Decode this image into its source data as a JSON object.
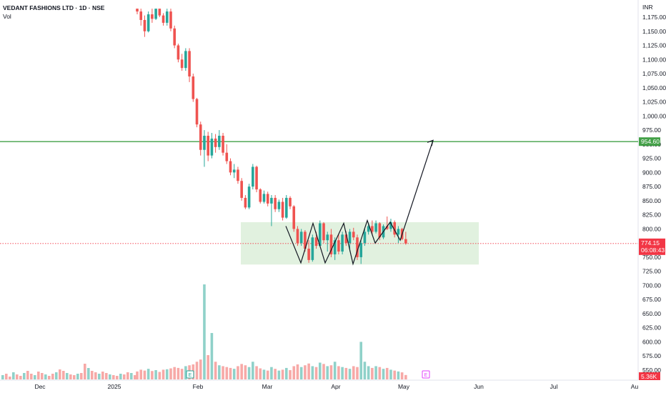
{
  "header": {
    "title": "VEDANT FASHIONS LTD · 1D · NSE",
    "volume_label": "Vol"
  },
  "currency": "INR",
  "colors": {
    "up": "#26a69a",
    "down": "#ef5350",
    "up_vol": "#8fd1c9",
    "down_vol": "#f7a9a7",
    "resistance": "#43a047",
    "box": "#d7ecd4",
    "current": "#f23645"
  },
  "chart_data": {
    "type": "candlestick",
    "title": "VEDANT FASHIONS LTD · 1D · NSE",
    "ylim": [
      535,
      1190
    ],
    "yticks": [
      550,
      575,
      600,
      625,
      650,
      675,
      700,
      725,
      750,
      775,
      800,
      825,
      850,
      875,
      900,
      925,
      950,
      975,
      1000,
      1025,
      1050,
      1075,
      1100,
      1125,
      1150,
      1175
    ],
    "ytick_labels": [
      "550.00",
      "575.00",
      "600.00",
      "625.00",
      "650.00",
      "675.00",
      "700.00",
      "725.00",
      "750.00",
      "775.00",
      "800.00",
      "825.00",
      "850.00",
      "875.00",
      "900.00",
      "925.00",
      "950.00",
      "975.00",
      "1,000.00",
      "1,025.00",
      "1,050.00",
      "1,075.00",
      "1,100.00",
      "1,125.00",
      "1,150.00",
      "1,175.00"
    ],
    "xticks": [
      "Dec",
      "2025",
      "Feb",
      "Mar",
      "Apr",
      "May",
      "Jun",
      "Jul",
      "Au"
    ],
    "candles": [
      {
        "o": 1200,
        "h": 1206,
        "l": 1180,
        "c": 1185,
        "v": 18
      },
      {
        "o": 1185,
        "h": 1195,
        "l": 1160,
        "c": 1170,
        "v": 22
      },
      {
        "o": 1170,
        "h": 1178,
        "l": 1140,
        "c": 1150,
        "v": 20
      },
      {
        "o": 1150,
        "h": 1185,
        "l": 1148,
        "c": 1180,
        "v": 24
      },
      {
        "o": 1180,
        "h": 1190,
        "l": 1165,
        "c": 1172,
        "v": 19
      },
      {
        "o": 1172,
        "h": 1195,
        "l": 1170,
        "c": 1190,
        "v": 21
      },
      {
        "o": 1190,
        "h": 1198,
        "l": 1175,
        "c": 1178,
        "v": 17
      },
      {
        "o": 1178,
        "h": 1182,
        "l": 1160,
        "c": 1165,
        "v": 22
      },
      {
        "o": 1165,
        "h": 1190,
        "l": 1160,
        "c": 1185,
        "v": 23
      },
      {
        "o": 1185,
        "h": 1192,
        "l": 1150,
        "c": 1155,
        "v": 25
      },
      {
        "o": 1155,
        "h": 1160,
        "l": 1120,
        "c": 1125,
        "v": 28
      },
      {
        "o": 1125,
        "h": 1128,
        "l": 1095,
        "c": 1100,
        "v": 26
      },
      {
        "o": 1100,
        "h": 1110,
        "l": 1080,
        "c": 1085,
        "v": 24
      },
      {
        "o": 1085,
        "h": 1120,
        "l": 1080,
        "c": 1115,
        "v": 30
      },
      {
        "o": 1115,
        "h": 1120,
        "l": 1060,
        "c": 1070,
        "v": 32
      },
      {
        "o": 1070,
        "h": 1075,
        "l": 1025,
        "c": 1030,
        "v": 34
      },
      {
        "o": 1030,
        "h": 1032,
        "l": 980,
        "c": 985,
        "v": 40
      },
      {
        "o": 985,
        "h": 990,
        "l": 930,
        "c": 940,
        "v": 45
      },
      {
        "o": 940,
        "h": 975,
        "l": 910,
        "c": 965,
        "v": 215
      },
      {
        "o": 965,
        "h": 972,
        "l": 920,
        "c": 930,
        "v": 55
      },
      {
        "o": 930,
        "h": 970,
        "l": 925,
        "c": 960,
        "v": 105
      },
      {
        "o": 960,
        "h": 968,
        "l": 935,
        "c": 945,
        "v": 40
      },
      {
        "o": 945,
        "h": 975,
        "l": 940,
        "c": 965,
        "v": 32
      },
      {
        "o": 965,
        "h": 970,
        "l": 930,
        "c": 935,
        "v": 30
      },
      {
        "o": 935,
        "h": 950,
        "l": 915,
        "c": 920,
        "v": 28
      },
      {
        "o": 920,
        "h": 925,
        "l": 895,
        "c": 900,
        "v": 26
      },
      {
        "o": 900,
        "h": 915,
        "l": 890,
        "c": 905,
        "v": 24
      },
      {
        "o": 905,
        "h": 910,
        "l": 880,
        "c": 885,
        "v": 30
      },
      {
        "o": 885,
        "h": 890,
        "l": 850,
        "c": 855,
        "v": 35
      },
      {
        "o": 855,
        "h": 860,
        "l": 835,
        "c": 838,
        "v": 32
      },
      {
        "o": 838,
        "h": 880,
        "l": 835,
        "c": 875,
        "v": 28
      },
      {
        "o": 875,
        "h": 915,
        "l": 870,
        "c": 910,
        "v": 40
      },
      {
        "o": 910,
        "h": 912,
        "l": 865,
        "c": 870,
        "v": 30
      },
      {
        "o": 870,
        "h": 872,
        "l": 845,
        "c": 848,
        "v": 25
      },
      {
        "o": 848,
        "h": 868,
        "l": 845,
        "c": 862,
        "v": 22
      },
      {
        "o": 862,
        "h": 866,
        "l": 840,
        "c": 845,
        "v": 20
      },
      {
        "o": 845,
        "h": 860,
        "l": 805,
        "c": 855,
        "v": 28
      },
      {
        "o": 855,
        "h": 860,
        "l": 830,
        "c": 835,
        "v": 24
      },
      {
        "o": 835,
        "h": 852,
        "l": 830,
        "c": 848,
        "v": 20
      },
      {
        "o": 848,
        "h": 855,
        "l": 815,
        "c": 820,
        "v": 22
      },
      {
        "o": 820,
        "h": 860,
        "l": 818,
        "c": 855,
        "v": 26
      },
      {
        "o": 855,
        "h": 858,
        "l": 835,
        "c": 840,
        "v": 21
      },
      {
        "o": 840,
        "h": 842,
        "l": 795,
        "c": 800,
        "v": 30
      },
      {
        "o": 800,
        "h": 805,
        "l": 770,
        "c": 775,
        "v": 34
      },
      {
        "o": 775,
        "h": 800,
        "l": 770,
        "c": 795,
        "v": 28
      },
      {
        "o": 795,
        "h": 798,
        "l": 760,
        "c": 765,
        "v": 32
      },
      {
        "o": 765,
        "h": 780,
        "l": 740,
        "c": 745,
        "v": 36
      },
      {
        "o": 745,
        "h": 790,
        "l": 742,
        "c": 785,
        "v": 30
      },
      {
        "o": 785,
        "h": 795,
        "l": 765,
        "c": 770,
        "v": 28
      },
      {
        "o": 770,
        "h": 815,
        "l": 768,
        "c": 810,
        "v": 38
      },
      {
        "o": 810,
        "h": 812,
        "l": 775,
        "c": 780,
        "v": 35
      },
      {
        "o": 780,
        "h": 795,
        "l": 760,
        "c": 790,
        "v": 30
      },
      {
        "o": 790,
        "h": 800,
        "l": 750,
        "c": 755,
        "v": 32
      },
      {
        "o": 755,
        "h": 785,
        "l": 745,
        "c": 780,
        "v": 40
      },
      {
        "o": 780,
        "h": 790,
        "l": 755,
        "c": 760,
        "v": 30
      },
      {
        "o": 760,
        "h": 795,
        "l": 755,
        "c": 790,
        "v": 28
      },
      {
        "o": 790,
        "h": 796,
        "l": 770,
        "c": 775,
        "v": 26
      },
      {
        "o": 775,
        "h": 800,
        "l": 760,
        "c": 795,
        "v": 24
      },
      {
        "o": 795,
        "h": 802,
        "l": 780,
        "c": 785,
        "v": 30
      },
      {
        "o": 785,
        "h": 790,
        "l": 745,
        "c": 750,
        "v": 28
      },
      {
        "o": 750,
        "h": 780,
        "l": 738,
        "c": 775,
        "v": 85
      },
      {
        "o": 775,
        "h": 800,
        "l": 770,
        "c": 795,
        "v": 40
      },
      {
        "o": 795,
        "h": 810,
        "l": 790,
        "c": 805,
        "v": 30
      },
      {
        "o": 805,
        "h": 815,
        "l": 790,
        "c": 795,
        "v": 26
      },
      {
        "o": 795,
        "h": 815,
        "l": 792,
        "c": 810,
        "v": 30
      },
      {
        "o": 810,
        "h": 812,
        "l": 780,
        "c": 785,
        "v": 28
      },
      {
        "o": 785,
        "h": 808,
        "l": 782,
        "c": 805,
        "v": 24
      },
      {
        "o": 805,
        "h": 822,
        "l": 798,
        "c": 800,
        "v": 26
      },
      {
        "o": 800,
        "h": 818,
        "l": 795,
        "c": 812,
        "v": 22
      },
      {
        "o": 812,
        "h": 815,
        "l": 785,
        "c": 790,
        "v": 20
      },
      {
        "o": 790,
        "h": 805,
        "l": 775,
        "c": 800,
        "v": 18
      },
      {
        "o": 800,
        "h": 802,
        "l": 780,
        "c": 782,
        "v": 16
      },
      {
        "o": 782,
        "h": 795,
        "l": 772,
        "c": 774.15,
        "v": 10
      }
    ],
    "resistance": 954.6,
    "resistance_label": "954.60",
    "current_price": 774.15,
    "current_price_label": "774.15",
    "countdown_label": "06:08:43",
    "volume_label": "5.36K",
    "range_box": {
      "low": 737,
      "high": 812
    },
    "zigzag": [
      805,
      740,
      810,
      740,
      810,
      738,
      815,
      775,
      812,
      780,
      957
    ],
    "earnings_markers": [
      "E",
      "E"
    ]
  }
}
